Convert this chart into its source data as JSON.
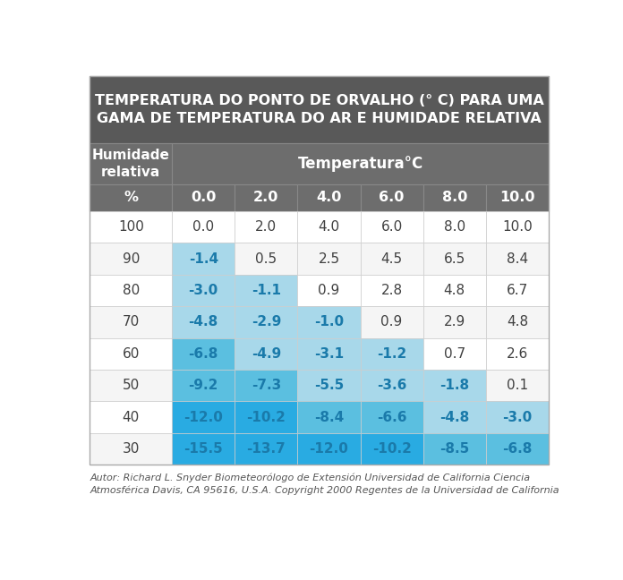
{
  "title": "TEMPERATURA DO PONTO DE ORVALHO (° C) PARA UMA\nGAMA DE TEMPERATURA DO AR E HUMIDADE RELATIVA",
  "col_header_left": "Humidade\nrelativa",
  "col_header_right": "Temperatura°C",
  "subheader_left": "%",
  "subheader_right": [
    "0.0",
    "2.0",
    "4.0",
    "6.0",
    "8.0",
    "10.0"
  ],
  "row_labels": [
    "100",
    "90",
    "80",
    "70",
    "60",
    "50",
    "40",
    "30"
  ],
  "table_data": [
    [
      "0.0",
      "2.0",
      "4.0",
      "6.0",
      "8.0",
      "10.0"
    ],
    [
      "-1.4",
      "0.5",
      "2.5",
      "4.5",
      "6.5",
      "8.4"
    ],
    [
      "-3.0",
      "-1.1",
      "0.9",
      "2.8",
      "4.8",
      "6.7"
    ],
    [
      "-4.8",
      "-2.9",
      "-1.0",
      "0.9",
      "2.9",
      "4.8"
    ],
    [
      "-6.8",
      "-4.9",
      "-3.1",
      "-1.2",
      "0.7",
      "2.6"
    ],
    [
      "-9.2",
      "-7.3",
      "-5.5",
      "-3.6",
      "-1.8",
      "0.1"
    ],
    [
      "-12.0",
      "-10.2",
      "-8.4",
      "-6.6",
      "-4.8",
      "-3.0"
    ],
    [
      "-15.5",
      "-13.7",
      "-12.0",
      "-10.2",
      "-8.5",
      "-6.8"
    ]
  ],
  "cell_colors": [
    [
      "W",
      "W",
      "W",
      "W",
      "W",
      "W"
    ],
    [
      "L",
      "W",
      "W",
      "W",
      "W",
      "W"
    ],
    [
      "L",
      "L",
      "W",
      "W",
      "W",
      "W"
    ],
    [
      "L",
      "L",
      "L",
      "W",
      "W",
      "W"
    ],
    [
      "D",
      "L",
      "L",
      "L",
      "W",
      "W"
    ],
    [
      "D",
      "D",
      "L",
      "L",
      "L",
      "W"
    ],
    [
      "B",
      "B",
      "D",
      "D",
      "L",
      "L"
    ],
    [
      "B",
      "B",
      "B",
      "B",
      "D",
      "D"
    ]
  ],
  "color_W": "#ffffff",
  "color_L": "#a8d8ea",
  "color_D": "#5bbfe0",
  "color_B": "#29abe2",
  "header_bg": "#595959",
  "subheader_bg": "#6d6d6d",
  "row_bg_even": "#ffffff",
  "row_bg_odd": "#f5f5f5",
  "border_color": "#cccccc",
  "title_color": "#ffffff",
  "header_text_color": "#ffffff",
  "data_text_color": "#404040",
  "footer_color": "#555555",
  "footer_text": "Autor: Richard L. Snyder Biometeorólogo de Extensión Universidad de California Ciencia\nAtmosférica Davis, CA 95616, U.S.A. Copyright 2000 Regentes de la Universidad de California"
}
